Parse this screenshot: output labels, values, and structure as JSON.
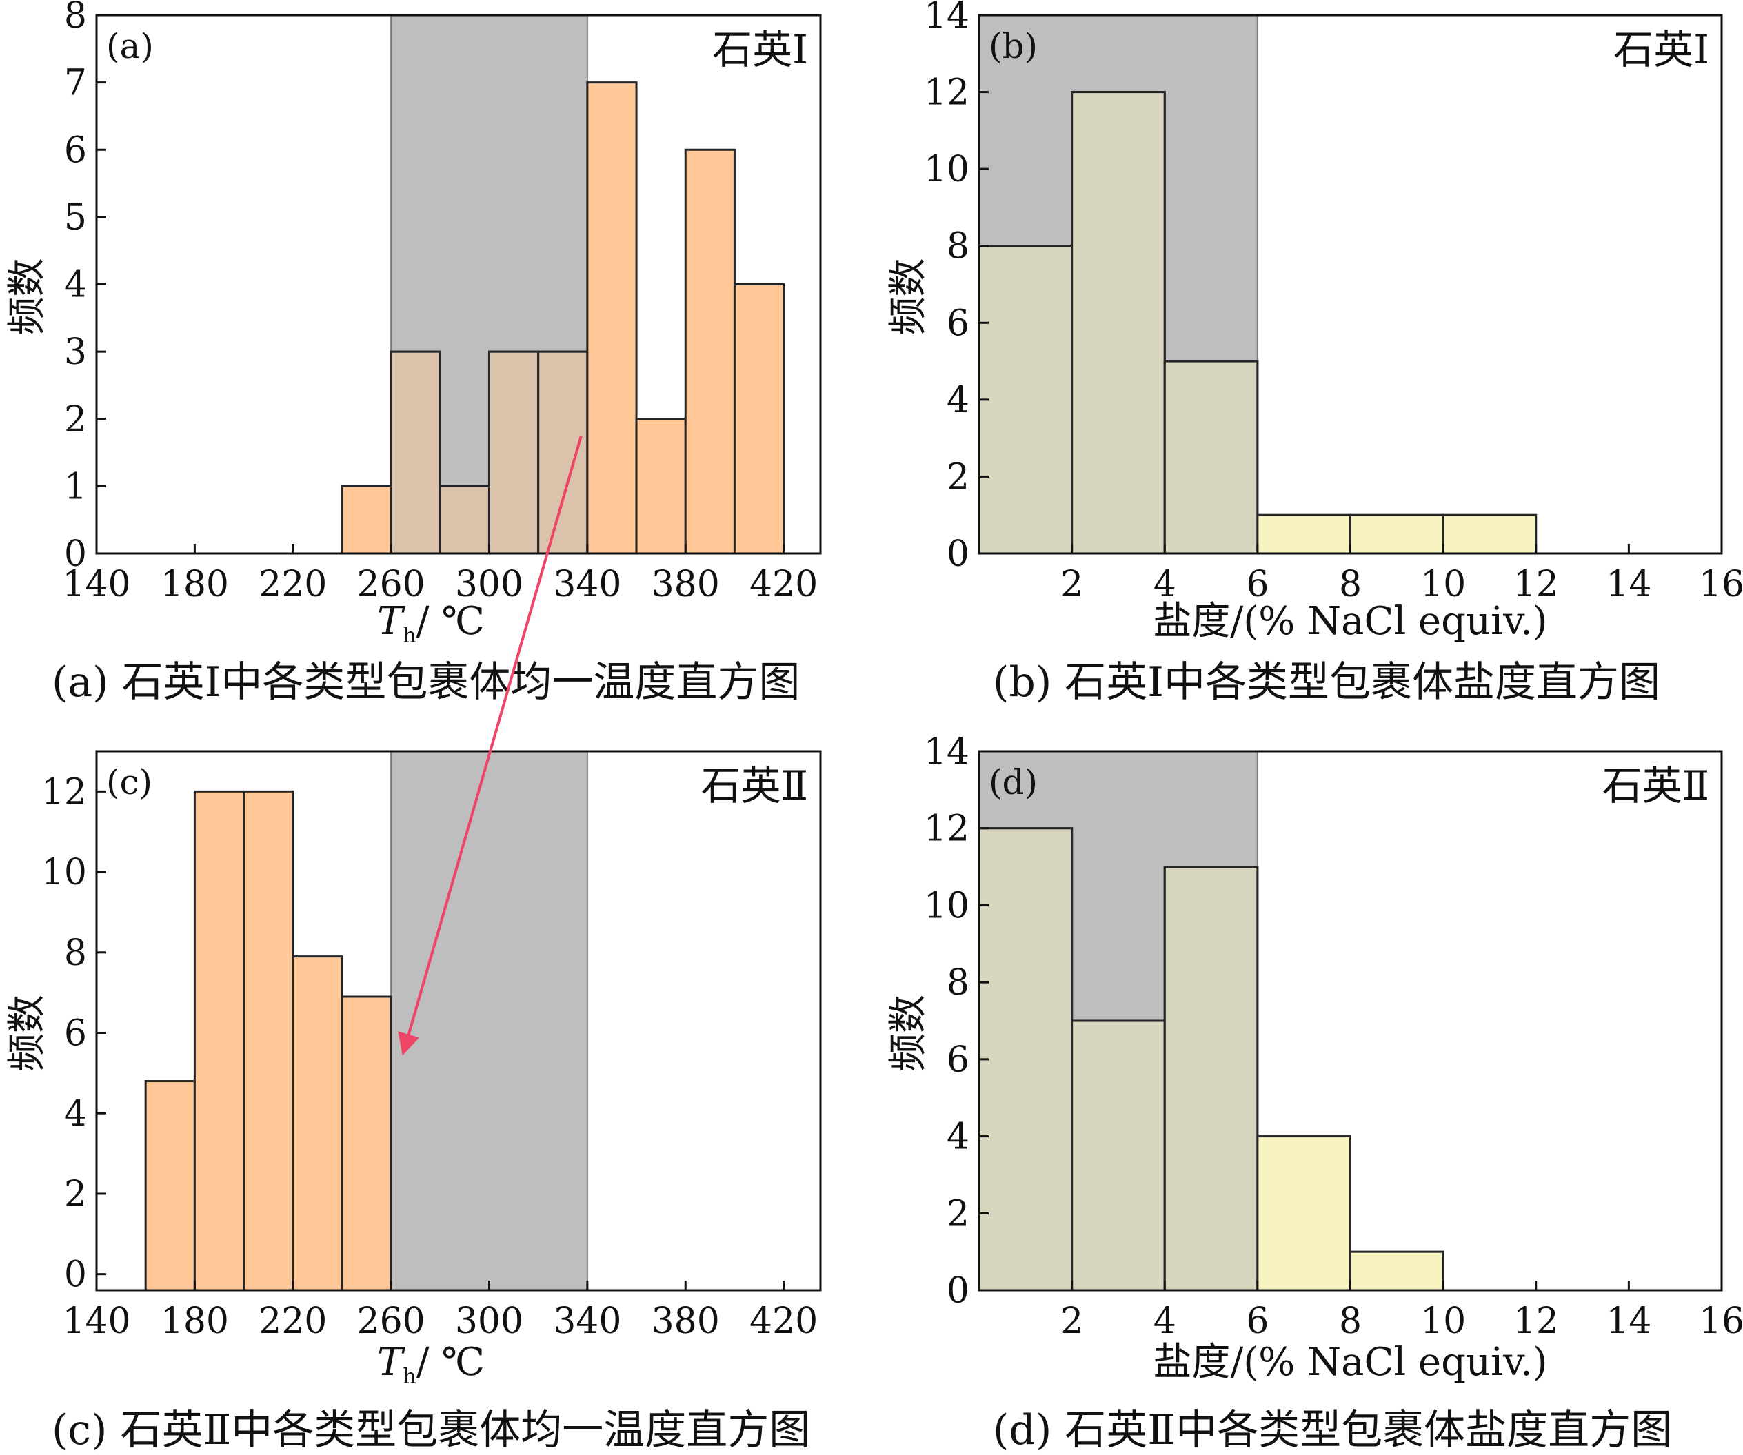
{
  "colors": {
    "shade": "#BEBEBE",
    "shade_edge": "#7A7A7A",
    "bar_orange": "#FFC896",
    "bar_yellow": "#F8F4C2",
    "bar_edge": "#262626",
    "arrow": "#EE4466"
  },
  "arrow": {
    "from": [
      337.5,
      1.75
    ],
    "from_panel": 0,
    "to": [
      265,
      5.5
    ],
    "to_panel": 2
  },
  "chart_data": [
    {
      "type": "bar",
      "panel": "(a)",
      "tag": "石英Ⅰ",
      "xlabel_main": "T",
      "xlabel_sub": "h",
      "xlabel_unit": "/ ℃",
      "ylabel": "频数",
      "caption": "(a) 石英Ⅰ中各类型包裹体均一温度直方图",
      "xlim": [
        140,
        435
      ],
      "ylim": [
        0,
        8
      ],
      "xticks": [
        140,
        180,
        220,
        260,
        300,
        340,
        380,
        420
      ],
      "yticks": [
        0,
        1,
        2,
        3,
        4,
        5,
        6,
        7,
        8
      ],
      "shade": [
        260,
        340
      ],
      "bin_width": 20,
      "bars": [
        {
          "x0": 240,
          "value": 1
        },
        {
          "x0": 260,
          "value": 3
        },
        {
          "x0": 280,
          "value": 1
        },
        {
          "x0": 300,
          "value": 3
        },
        {
          "x0": 320,
          "value": 3
        },
        {
          "x0": 340,
          "value": 7
        },
        {
          "x0": 360,
          "value": 2
        },
        {
          "x0": 380,
          "value": 6
        },
        {
          "x0": 400,
          "value": 4
        }
      ]
    },
    {
      "type": "bar",
      "panel": "(b)",
      "tag": "石英Ⅰ",
      "xlabel": "盐度/(% NaCl equiv.)",
      "ylabel": "频数",
      "caption": "(b) 石英Ⅰ中各类型包裹体盐度直方图",
      "xlim": [
        0,
        16
      ],
      "ylim": [
        0,
        14
      ],
      "xticks": [
        2,
        4,
        6,
        8,
        10,
        12,
        14,
        16
      ],
      "yticks": [
        0,
        2,
        4,
        6,
        8,
        10,
        12,
        14
      ],
      "shade": [
        0,
        6
      ],
      "bin_width": 2,
      "bars": [
        {
          "x0": 0,
          "value": 8
        },
        {
          "x0": 2,
          "value": 12
        },
        {
          "x0": 4,
          "value": 5
        },
        {
          "x0": 6,
          "value": 1
        },
        {
          "x0": 8,
          "value": 1
        },
        {
          "x0": 10,
          "value": 1
        }
      ]
    },
    {
      "type": "bar",
      "panel": "(c)",
      "tag": "石英Ⅱ",
      "xlabel_main": "T",
      "xlabel_sub": "h",
      "xlabel_unit": "/ ℃",
      "ylabel": "频数",
      "caption": "(c) 石英Ⅱ中各类型包裹体均一温度直方图",
      "xlim": [
        140,
        435
      ],
      "ylim": [
        -0.4,
        13
      ],
      "xticks": [
        140,
        180,
        220,
        260,
        300,
        340,
        380,
        420
      ],
      "yticks": [
        0,
        2,
        4,
        6,
        8,
        10,
        12
      ],
      "shade": [
        260,
        340
      ],
      "bin_width": 20,
      "bars": [
        {
          "x0": 160,
          "value": 4.8
        },
        {
          "x0": 180,
          "value": 12
        },
        {
          "x0": 200,
          "value": 12
        },
        {
          "x0": 220,
          "value": 7.9
        },
        {
          "x0": 240,
          "value": 6.9
        }
      ]
    },
    {
      "type": "bar",
      "panel": "(d)",
      "tag": "石英Ⅱ",
      "xlabel": "盐度/(% NaCl equiv.)",
      "ylabel": "频数",
      "caption": "(d) 石英Ⅱ中各类型包裹体盐度直方图",
      "xlim": [
        0,
        16
      ],
      "ylim": [
        0,
        14
      ],
      "xticks": [
        2,
        4,
        6,
        8,
        10,
        12,
        14,
        16
      ],
      "yticks": [
        0,
        2,
        4,
        6,
        8,
        10,
        12,
        14
      ],
      "shade": [
        0,
        6
      ],
      "bin_width": 2,
      "bars": [
        {
          "x0": 0,
          "value": 12
        },
        {
          "x0": 2,
          "value": 7
        },
        {
          "x0": 4,
          "value": 11
        },
        {
          "x0": 6,
          "value": 4
        },
        {
          "x0": 8,
          "value": 1
        }
      ]
    }
  ]
}
